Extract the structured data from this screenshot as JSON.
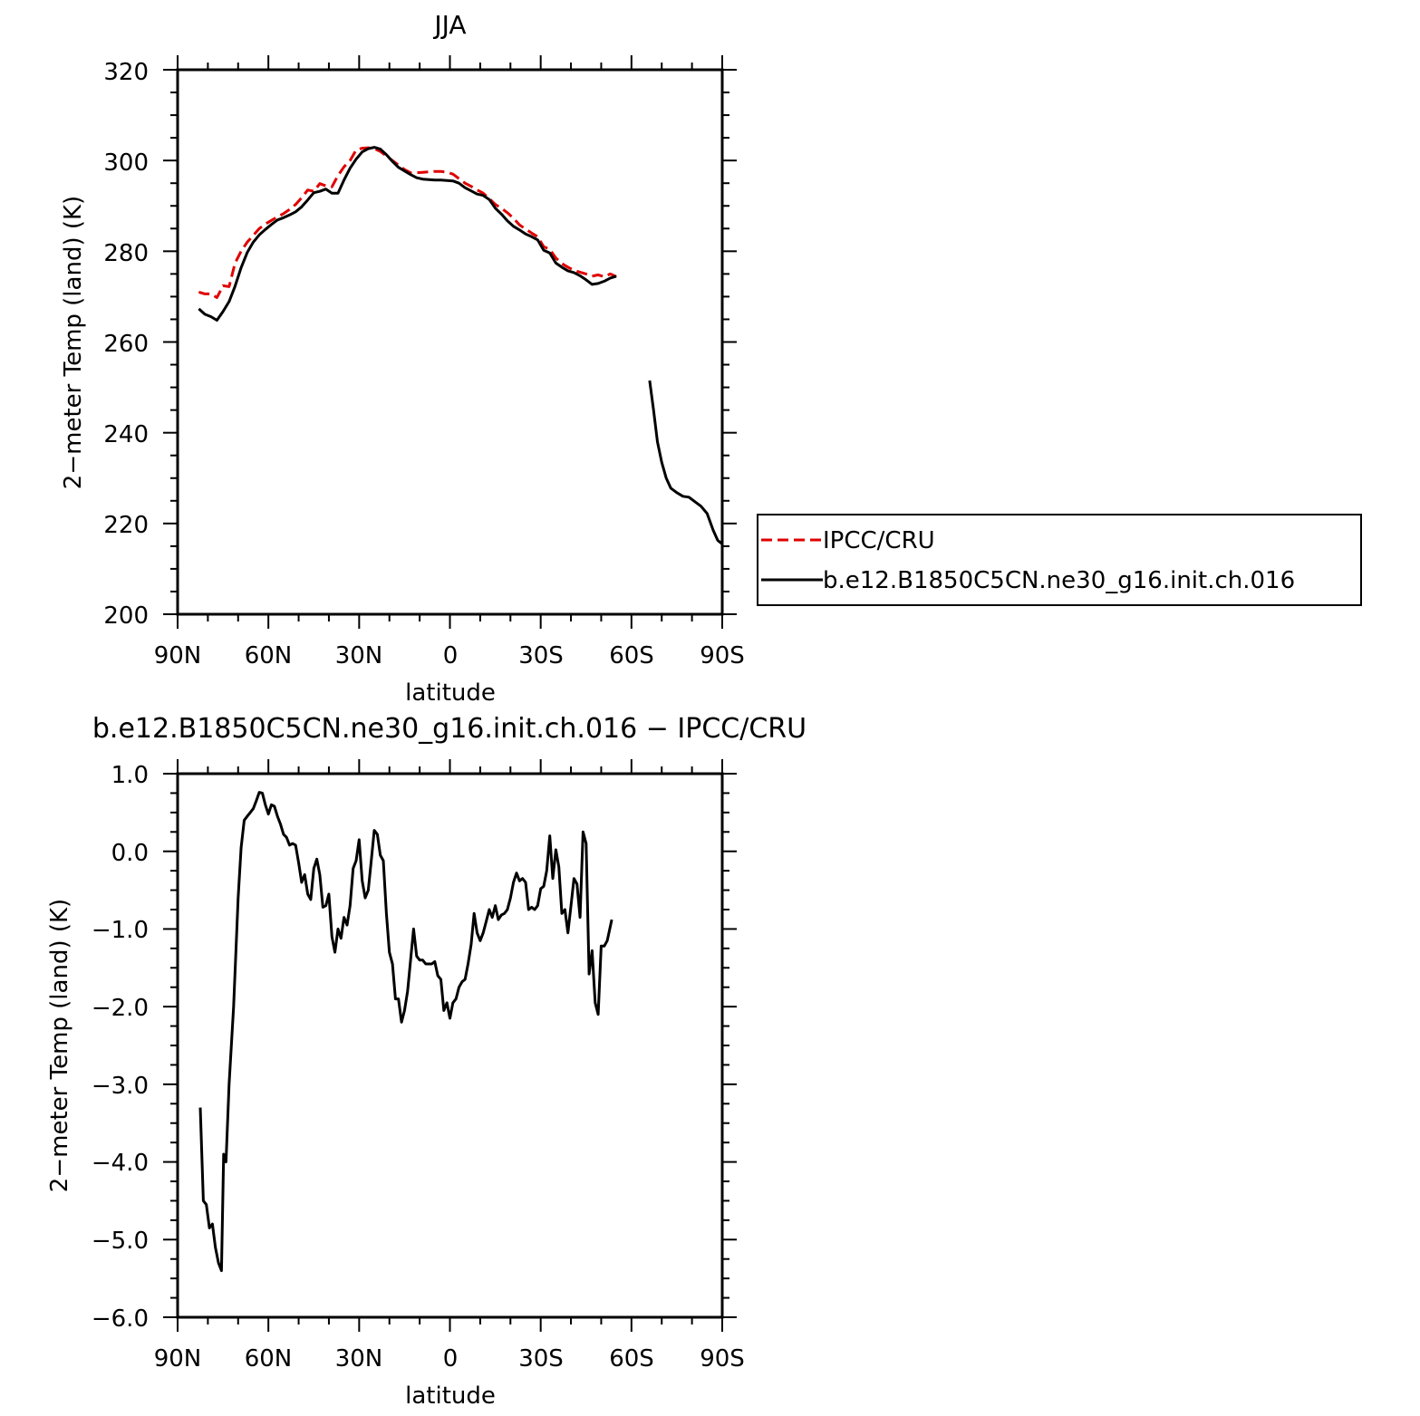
{
  "colors": {
    "model": "#000000",
    "obs": "#e00000",
    "frame": "#000000"
  },
  "chart_data": [
    {
      "type": "line",
      "title": "JJA",
      "xlabel": "latitude",
      "ylabel": "2−meter Temp (land) (K)",
      "xlim": [
        90,
        -90
      ],
      "ylim": [
        200,
        320
      ],
      "x_ticks": [
        90,
        60,
        30,
        0,
        -30,
        -60,
        -90
      ],
      "x_tick_labels": [
        "90N",
        "60N",
        "30N",
        "0",
        "30S",
        "60S",
        "90S"
      ],
      "y_ticks": [
        200,
        220,
        240,
        260,
        280,
        300,
        320
      ],
      "y_tick_labels": [
        "200",
        "220",
        "240",
        "260",
        "280",
        "300",
        "320"
      ],
      "legend": {
        "position": "right",
        "entries": [
          "IPCC/CRU",
          "b.e12.B1850C5CN.ne30_g16.init.ch.016"
        ]
      },
      "series": [
        {
          "name": "IPCC/CRU",
          "style": "dashed",
          "color": "obs",
          "x": [
            83,
            81,
            79,
            77,
            75,
            73,
            71,
            69,
            67,
            65,
            63,
            61,
            59,
            57,
            55,
            53,
            51,
            49,
            47,
            45,
            43,
            41,
            39,
            37,
            35,
            33,
            31,
            29,
            27,
            25,
            23,
            21,
            19,
            17,
            15,
            13,
            11,
            9,
            7,
            5,
            3,
            1,
            -1,
            -3,
            -5,
            -7,
            -9,
            -11,
            -13,
            -15,
            -17,
            -19,
            -21,
            -23,
            -25,
            -27,
            -29,
            -31,
            -33,
            -35,
            -37,
            -39,
            -41,
            -43,
            -45,
            -47,
            -49,
            -51,
            -53,
            -55
          ],
          "y": [
            271,
            270.6,
            270.6,
            269.8,
            272.4,
            272.2,
            277.4,
            280,
            282,
            283.5,
            285,
            286,
            286.8,
            287.6,
            288.3,
            289.2,
            290.3,
            291.8,
            293.5,
            293.2,
            294.9,
            294.4,
            294.2,
            296.7,
            298.6,
            300,
            302.3,
            302.7,
            302.8,
            302.6,
            302,
            301,
            300,
            299,
            298,
            297.3,
            297.3,
            297.4,
            297.5,
            297.6,
            297.6,
            297.4,
            297,
            296,
            295,
            294.3,
            293.5,
            292.8,
            291.6,
            290.3,
            289.5,
            288.5,
            287.3,
            285.8,
            284.9,
            284,
            283.2,
            281,
            280.4,
            278.5,
            277.3,
            276.5,
            275.8,
            275.4,
            275,
            274.5,
            274.8,
            274.4,
            275,
            274.4
          ]
        },
        {
          "name": "b.e12.B1850C5CN.ne30_g16.init.ch.016",
          "style": "solid",
          "color": "model",
          "x": [
            83,
            81,
            79,
            77,
            75,
            73,
            71,
            69,
            67,
            65,
            63,
            61,
            59,
            57,
            55,
            53,
            51,
            49,
            47,
            45,
            43,
            41,
            39,
            37,
            35,
            33,
            31,
            29,
            27,
            25,
            23,
            21,
            19,
            17,
            15,
            13,
            11,
            9,
            7,
            5,
            3,
            1,
            -1,
            -3,
            -5,
            -7,
            -9,
            -11,
            -13,
            -15,
            -17,
            -19,
            -21,
            -23,
            -25,
            -27,
            -29,
            -31,
            -33,
            -35,
            -37,
            -39,
            -41,
            -43,
            -45,
            -47,
            -49,
            -51,
            -53,
            -55,
            null,
            -66,
            -67.3,
            -68.6,
            -70,
            -71.5,
            -73,
            -75,
            -77,
            -79,
            -81,
            -83,
            -85,
            -87,
            -88.5,
            -90
          ],
          "y": [
            267.3,
            266.1,
            265.6,
            264.8,
            266.7,
            268.9,
            272.3,
            276.4,
            279.7,
            282,
            283.6,
            284.8,
            285.9,
            286.9,
            287.4,
            288,
            288.7,
            289.8,
            291.3,
            292.9,
            293.2,
            293.7,
            292.8,
            292.8,
            295.7,
            298.3,
            300.3,
            301.9,
            302.6,
            302.9,
            302.5,
            301.3,
            299.8,
            298.5,
            297.7,
            296.9,
            296.2,
            295.9,
            295.8,
            295.7,
            295.7,
            295.6,
            295.5,
            295,
            294,
            293.3,
            292.6,
            292.3,
            291.4,
            289.5,
            288.2,
            286.7,
            285.5,
            284.7,
            283.8,
            283.2,
            282.5,
            280.2,
            279.6,
            277.4,
            276.5,
            275.7,
            275.3,
            274.6,
            273.7,
            272.7,
            272.9,
            273.4,
            274.1,
            274.5,
            null,
            251.5,
            245,
            238,
            233.5,
            230,
            227.8,
            226.8,
            226,
            225.8,
            224.8,
            223.8,
            222.2,
            218.5,
            216.3,
            215.5
          ]
        }
      ]
    },
    {
      "type": "line",
      "title": "b.e12.B1850C5CN.ne30_g16.init.ch.016 − IPCC/CRU",
      "xlabel": "latitude",
      "ylabel": "2−meter Temp (land) (K)",
      "xlim": [
        90,
        -90
      ],
      "ylim": [
        -6,
        1
      ],
      "x_ticks": [
        90,
        60,
        30,
        0,
        -30,
        -60,
        -90
      ],
      "x_tick_labels": [
        "90N",
        "60N",
        "30N",
        "0",
        "30S",
        "60S",
        "90S"
      ],
      "y_ticks": [
        1,
        0,
        -1,
        -2,
        -3,
        -4,
        -5,
        -6
      ],
      "y_tick_labels": [
        "1.0",
        "0.0",
        "−1.0",
        "−2.0",
        "−3.0",
        "−4.0",
        "−5.0",
        "−6.0"
      ],
      "series": [
        {
          "style": "solid",
          "color": "model",
          "x": [
            82.5,
            81.5,
            80.5,
            79.5,
            78.5,
            77.5,
            76.5,
            75.5,
            74.8,
            74,
            73,
            71.5,
            70,
            69,
            68,
            67,
            66,
            65,
            64,
            63,
            62,
            61,
            60,
            59,
            58,
            57,
            56,
            55,
            54,
            53,
            52,
            51,
            50,
            49,
            48,
            47,
            46,
            45,
            44,
            43,
            42,
            41,
            40,
            39,
            38,
            37,
            36,
            35,
            34,
            33,
            32,
            31,
            30,
            29,
            28,
            27,
            26,
            25,
            24,
            23,
            22,
            21,
            20,
            19,
            18,
            17,
            16,
            15,
            14,
            13,
            12,
            11,
            10,
            9,
            8,
            7,
            6,
            5,
            4,
            3,
            2,
            1,
            0,
            -1,
            -2,
            -3,
            -4,
            -5,
            -6,
            -7,
            -8,
            -9,
            -10,
            -11,
            -12,
            -13,
            -14,
            -15,
            -16,
            -17,
            -18,
            -19,
            -20,
            -21,
            -22,
            -23,
            -24,
            -25,
            -26,
            -27,
            -28,
            -29,
            -30,
            -31,
            -32,
            -33,
            -34,
            -35,
            -36,
            -37,
            -38,
            -39,
            -40,
            -41,
            -42,
            -43,
            -44,
            -45,
            -46,
            -47,
            -48,
            -49,
            -50,
            -51,
            -52,
            -53.5
          ],
          "y": [
            -3.3,
            -4.5,
            -4.55,
            -4.85,
            -4.8,
            -5.1,
            -5.3,
            -5.4,
            -3.9,
            -4,
            -3,
            -2,
            -0.6,
            0.05,
            0.4,
            0.45,
            0.5,
            0.55,
            0.65,
            0.76,
            0.75,
            0.6,
            0.48,
            0.6,
            0.58,
            0.45,
            0.35,
            0.22,
            0.18,
            0.08,
            0.1,
            0.08,
            -0.15,
            -0.4,
            -0.3,
            -0.55,
            -0.62,
            -0.22,
            -0.1,
            -0.3,
            -0.72,
            -0.7,
            -0.55,
            -1.1,
            -1.3,
            -1,
            -1.12,
            -0.85,
            -0.95,
            -0.7,
            -0.22,
            -0.12,
            0.15,
            -0.38,
            -0.6,
            -0.5,
            -0.12,
            0.27,
            0.22,
            -0.05,
            -0.12,
            -0.8,
            -1.3,
            -1.45,
            -1.9,
            -1.9,
            -2.2,
            -2.05,
            -1.8,
            -1.4,
            -1,
            -1.35,
            -1.4,
            -1.4,
            -1.45,
            -1.45,
            -1.45,
            -1.42,
            -1.6,
            -1.65,
            -2.05,
            -1.95,
            -2.15,
            -1.95,
            -1.9,
            -1.75,
            -1.68,
            -1.65,
            -1.45,
            -1.2,
            -0.8,
            -1.05,
            -1.15,
            -1.05,
            -0.9,
            -0.75,
            -0.85,
            -0.7,
            -0.88,
            -0.82,
            -0.8,
            -0.75,
            -0.6,
            -0.4,
            -0.28,
            -0.38,
            -0.35,
            -0.4,
            -0.75,
            -0.72,
            -0.75,
            -0.7,
            -0.48,
            -0.45,
            -0.25,
            0.2,
            -0.35,
            0.02,
            -0.2,
            -0.8,
            -0.75,
            -1.05,
            -0.7,
            -0.35,
            -0.42,
            -0.85,
            0.25,
            0.1,
            -1.58,
            -1.28,
            -1.95,
            -2.1,
            -1.22,
            -1.22,
            -1.15,
            -0.88
          ]
        }
      ]
    }
  ]
}
